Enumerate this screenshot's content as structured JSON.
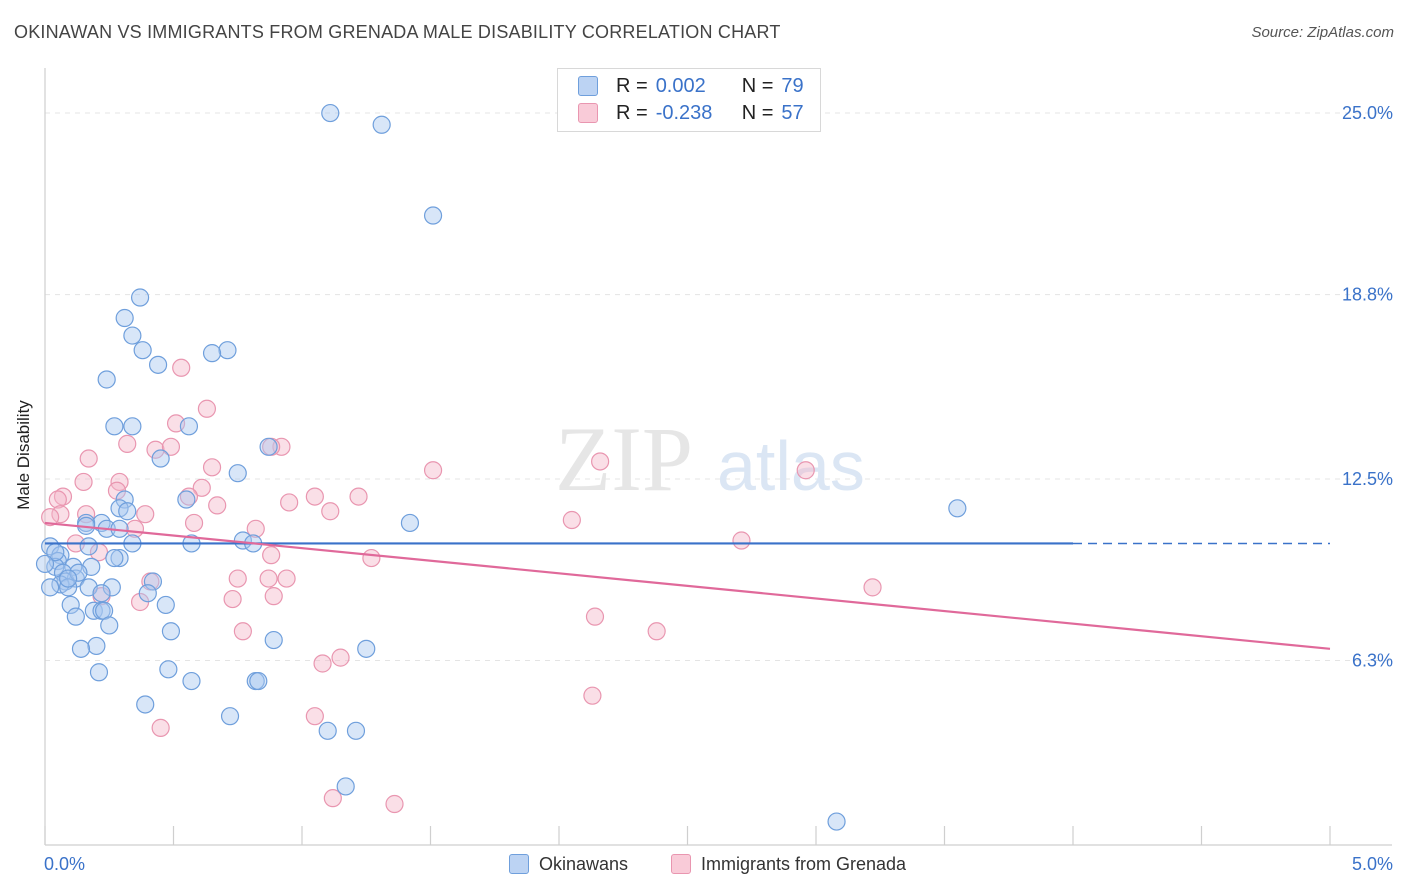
{
  "header": {
    "title": "OKINAWAN VS IMMIGRANTS FROM GRENADA MALE DISABILITY CORRELATION CHART",
    "source": "Source: ZipAtlas.com"
  },
  "watermark": {
    "part1": "ZIP",
    "part2": "atlas"
  },
  "legend_stats": [
    {
      "r_label": "R =",
      "r_value": "0.002",
      "n_label": "N =",
      "n_value": "79"
    },
    {
      "r_label": "R =",
      "r_value": "-0.238",
      "n_label": "N =",
      "n_value": "57"
    }
  ],
  "bottom_legend": {
    "series1": "Okinawans",
    "series2": "Immigrants from Grenada"
  },
  "colors": {
    "blue_fill": "#a9c7ef",
    "blue_stroke": "#6f9fdc",
    "blue_line": "#3a72c9",
    "pink_fill": "#f5b8ca",
    "pink_stroke": "#e996b0",
    "pink_line": "#e0699a",
    "tick_text": "#3a72c9",
    "grid": "#e4e4e4"
  },
  "chart_data": {
    "type": "scatter",
    "title": "OKINAWAN VS IMMIGRANTS FROM GRENADA MALE DISABILITY CORRELATION CHART",
    "xlabel": "",
    "ylabel": "Male Disability",
    "xlim": [
      0.0,
      5.0
    ],
    "ylim": [
      0.0,
      26.3
    ],
    "x_tick_labels": [
      {
        "value": 0.0,
        "label": "0.0%"
      },
      {
        "value": 5.0,
        "label": "5.0%"
      }
    ],
    "y_tick_labels": [
      {
        "value": 6.3,
        "label": "6.3%"
      },
      {
        "value": 12.5,
        "label": "12.5%"
      },
      {
        "value": 18.8,
        "label": "18.8%"
      },
      {
        "value": 25.0,
        "label": "25.0%"
      }
    ],
    "grid": true,
    "legend_position": "top-center",
    "series": [
      {
        "name": "Okinawans",
        "r": 0.002,
        "n": 79,
        "trend": {
          "x": [
            0.0,
            4.0
          ],
          "y": [
            10.3,
            10.3
          ],
          "dashed_extension_to": 5.0
        },
        "points": [
          [
            1.11,
            25.0
          ],
          [
            1.31,
            24.6
          ],
          [
            1.51,
            21.5
          ],
          [
            0.37,
            18.7
          ],
          [
            0.31,
            18.0
          ],
          [
            0.34,
            17.4
          ],
          [
            0.38,
            16.9
          ],
          [
            0.71,
            16.9
          ],
          [
            0.65,
            16.8
          ],
          [
            0.44,
            16.4
          ],
          [
            0.24,
            15.9
          ],
          [
            0.27,
            14.3
          ],
          [
            0.34,
            14.3
          ],
          [
            0.56,
            14.3
          ],
          [
            0.87,
            13.6
          ],
          [
            0.45,
            13.2
          ],
          [
            0.75,
            12.7
          ],
          [
            0.55,
            11.8
          ],
          [
            0.31,
            11.8
          ],
          [
            0.29,
            11.5
          ],
          [
            0.32,
            11.4
          ],
          [
            0.22,
            11.0
          ],
          [
            0.16,
            11.0
          ],
          [
            0.16,
            10.9
          ],
          [
            0.24,
            10.8
          ],
          [
            0.29,
            10.8
          ],
          [
            0.57,
            10.3
          ],
          [
            0.77,
            10.4
          ],
          [
            0.81,
            10.3
          ],
          [
            0.34,
            10.3
          ],
          [
            0.17,
            10.2
          ],
          [
            0.02,
            10.2
          ],
          [
            0.06,
            9.9
          ],
          [
            0.29,
            9.8
          ],
          [
            0.27,
            9.8
          ],
          [
            0.05,
            9.7
          ],
          [
            0.04,
            9.5
          ],
          [
            0.11,
            9.5
          ],
          [
            0.18,
            9.5
          ],
          [
            0.07,
            9.3
          ],
          [
            0.12,
            9.1
          ],
          [
            0.08,
            9.0
          ],
          [
            0.42,
            9.0
          ],
          [
            0.06,
            8.9
          ],
          [
            0.02,
            8.8
          ],
          [
            0.09,
            8.8
          ],
          [
            0.26,
            8.8
          ],
          [
            0.17,
            8.8
          ],
          [
            0.22,
            8.6
          ],
          [
            0.4,
            8.6
          ],
          [
            0.1,
            8.2
          ],
          [
            0.47,
            8.2
          ],
          [
            0.19,
            8.0
          ],
          [
            0.22,
            8.0
          ],
          [
            0.23,
            8.0
          ],
          [
            0.12,
            7.8
          ],
          [
            0.25,
            7.5
          ],
          [
            0.49,
            7.3
          ],
          [
            0.89,
            7.0
          ],
          [
            0.2,
            6.8
          ],
          [
            0.14,
            6.7
          ],
          [
            1.25,
            6.7
          ],
          [
            0.48,
            6.0
          ],
          [
            0.21,
            5.9
          ],
          [
            0.57,
            5.6
          ],
          [
            0.82,
            5.6
          ],
          [
            0.83,
            5.6
          ],
          [
            0.39,
            4.8
          ],
          [
            0.72,
            4.4
          ],
          [
            1.1,
            3.9
          ],
          [
            1.21,
            3.9
          ],
          [
            1.17,
            2.0
          ],
          [
            3.08,
            0.8
          ],
          [
            1.42,
            11.0
          ],
          [
            3.55,
            11.5
          ],
          [
            0.04,
            10.0
          ],
          [
            0.0,
            9.6
          ],
          [
            0.13,
            9.3
          ],
          [
            0.09,
            9.1
          ]
        ]
      },
      {
        "name": "Immigrants from Grenada",
        "r": -0.238,
        "n": 57,
        "trend": {
          "x": [
            0.0,
            5.0
          ],
          "y": [
            11.0,
            6.7
          ]
        },
        "points": [
          [
            0.53,
            16.3
          ],
          [
            0.63,
            14.9
          ],
          [
            0.51,
            14.4
          ],
          [
            0.32,
            13.7
          ],
          [
            0.43,
            13.5
          ],
          [
            0.49,
            13.6
          ],
          [
            0.92,
            13.6
          ],
          [
            0.88,
            13.6
          ],
          [
            0.17,
            13.2
          ],
          [
            2.16,
            13.1
          ],
          [
            1.51,
            12.8
          ],
          [
            2.96,
            12.8
          ],
          [
            0.65,
            12.9
          ],
          [
            0.15,
            12.4
          ],
          [
            0.29,
            12.4
          ],
          [
            0.61,
            12.2
          ],
          [
            0.28,
            12.1
          ],
          [
            0.07,
            11.9
          ],
          [
            1.05,
            11.9
          ],
          [
            1.22,
            11.9
          ],
          [
            0.05,
            11.8
          ],
          [
            0.56,
            11.9
          ],
          [
            0.95,
            11.7
          ],
          [
            0.67,
            11.6
          ],
          [
            1.11,
            11.4
          ],
          [
            0.39,
            11.3
          ],
          [
            0.06,
            11.3
          ],
          [
            0.16,
            11.3
          ],
          [
            2.05,
            11.1
          ],
          [
            0.58,
            11.0
          ],
          [
            0.35,
            10.8
          ],
          [
            0.82,
            10.8
          ],
          [
            0.12,
            10.3
          ],
          [
            0.21,
            10.0
          ],
          [
            0.88,
            9.9
          ],
          [
            1.27,
            9.8
          ],
          [
            2.71,
            10.4
          ],
          [
            0.75,
            9.1
          ],
          [
            0.87,
            9.1
          ],
          [
            0.94,
            9.1
          ],
          [
            0.41,
            9.0
          ],
          [
            3.22,
            8.8
          ],
          [
            0.22,
            8.5
          ],
          [
            0.73,
            8.4
          ],
          [
            0.37,
            8.3
          ],
          [
            0.89,
            8.5
          ],
          [
            2.14,
            7.8
          ],
          [
            2.38,
            7.3
          ],
          [
            0.77,
            7.3
          ],
          [
            1.15,
            6.4
          ],
          [
            1.08,
            6.2
          ],
          [
            2.13,
            5.1
          ],
          [
            1.05,
            4.4
          ],
          [
            0.45,
            4.0
          ],
          [
            1.12,
            1.6
          ],
          [
            1.36,
            1.4
          ],
          [
            0.02,
            11.2
          ]
        ]
      }
    ]
  }
}
